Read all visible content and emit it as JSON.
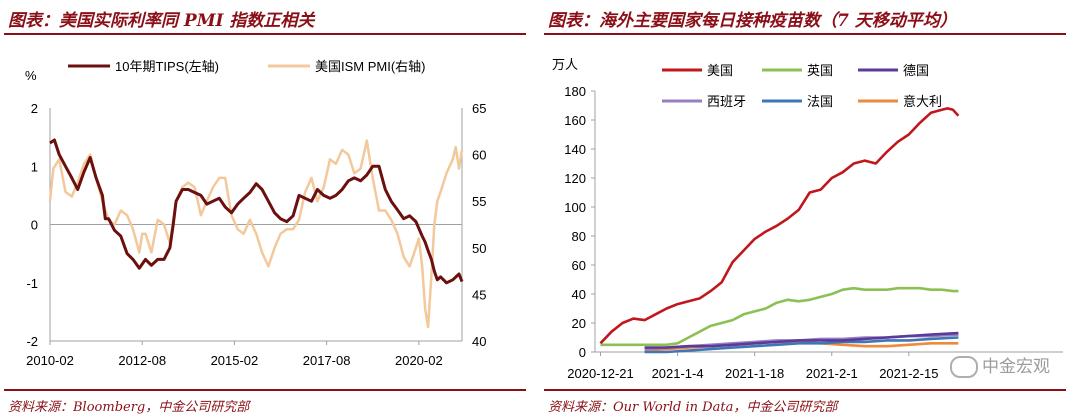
{
  "left_panel": {
    "title": "图表：美国实际利率同 PMI 指数正相关",
    "source": "资料来源：Bloomberg，中金公司研究部"
  },
  "right_panel": {
    "title": "图表：海外主要国家每日接种疫苗数（7 天移动平均）",
    "source": "资料来源：Our World in Data，中金公司研究部"
  },
  "watermark": "中金宏观",
  "chart_data": [
    {
      "type": "line",
      "title": "",
      "y_left_label": "%",
      "ylim_left": [
        -2,
        2
      ],
      "ylim_right": [
        40,
        65
      ],
      "yticks_left": [
        "-2",
        "-1",
        "0",
        "1",
        "2"
      ],
      "yticks_right": [
        "40",
        "45",
        "50",
        "55",
        "60",
        "65"
      ],
      "x_range": [
        2010.08,
        2021.25
      ],
      "xticks": [
        {
          "label": "2010-02",
          "x": 2010.08
        },
        {
          "label": "2012-08",
          "x": 2012.58
        },
        {
          "label": "2015-02",
          "x": 2015.08
        },
        {
          "label": "2017-08",
          "x": 2017.58
        },
        {
          "label": "2020-02",
          "x": 2020.08
        }
      ],
      "series": [
        {
          "name": "10年期TIPS(左轴)",
          "axis": "left",
          "color": "#6b0f0f",
          "x": [
            2010.08,
            2010.2,
            2010.33,
            2010.5,
            2010.67,
            2010.83,
            2011.0,
            2011.17,
            2011.33,
            2011.5,
            2011.58,
            2011.67,
            2011.83,
            2012.0,
            2012.17,
            2012.33,
            2012.5,
            2012.67,
            2012.83,
            2013.0,
            2013.17,
            2013.33,
            2013.42,
            2013.5,
            2013.67,
            2013.83,
            2014.0,
            2014.17,
            2014.33,
            2014.5,
            2014.67,
            2014.83,
            2015.0,
            2015.17,
            2015.33,
            2015.5,
            2015.67,
            2015.83,
            2016.0,
            2016.17,
            2016.33,
            2016.5,
            2016.67,
            2016.83,
            2017.0,
            2017.17,
            2017.33,
            2017.5,
            2017.67,
            2017.83,
            2018.0,
            2018.17,
            2018.33,
            2018.5,
            2018.67,
            2018.83,
            2019.0,
            2019.17,
            2019.33,
            2019.5,
            2019.67,
            2019.83,
            2020.0,
            2020.17,
            2020.25,
            2020.33,
            2020.42,
            2020.5,
            2020.58,
            2020.67,
            2020.83,
            2021.0,
            2021.17,
            2021.25
          ],
          "y": [
            1.4,
            1.45,
            1.2,
            1.0,
            0.8,
            0.6,
            0.9,
            1.15,
            0.8,
            0.5,
            0.1,
            0.1,
            -0.1,
            -0.2,
            -0.5,
            -0.6,
            -0.75,
            -0.6,
            -0.7,
            -0.6,
            -0.6,
            -0.4,
            0.0,
            0.4,
            0.6,
            0.6,
            0.55,
            0.5,
            0.35,
            0.4,
            0.45,
            0.3,
            0.2,
            0.35,
            0.45,
            0.55,
            0.7,
            0.6,
            0.4,
            0.2,
            0.1,
            0.05,
            0.15,
            0.5,
            0.45,
            0.4,
            0.6,
            0.5,
            0.45,
            0.5,
            0.6,
            0.75,
            0.8,
            0.75,
            0.85,
            1.0,
            1.0,
            0.6,
            0.4,
            0.25,
            0.1,
            0.15,
            0.05,
            -0.2,
            -0.3,
            -0.45,
            -0.6,
            -0.8,
            -0.95,
            -0.9,
            -1.0,
            -0.95,
            -0.85,
            -0.98
          ]
        },
        {
          "name": "美国ISM PMI(右轴)",
          "axis": "right",
          "color": "#f3c89b",
          "x": [
            2010.08,
            2010.17,
            2010.33,
            2010.5,
            2010.67,
            2010.83,
            2011.0,
            2011.17,
            2011.33,
            2011.5,
            2011.67,
            2011.83,
            2012.0,
            2012.17,
            2012.33,
            2012.5,
            2012.58,
            2012.67,
            2012.83,
            2013.0,
            2013.17,
            2013.33,
            2013.5,
            2013.67,
            2013.83,
            2014.0,
            2014.17,
            2014.33,
            2014.5,
            2014.67,
            2014.83,
            2015.0,
            2015.17,
            2015.33,
            2015.5,
            2015.67,
            2015.83,
            2016.0,
            2016.17,
            2016.33,
            2016.5,
            2016.67,
            2016.83,
            2017.0,
            2017.17,
            2017.33,
            2017.5,
            2017.67,
            2017.83,
            2018.0,
            2018.17,
            2018.33,
            2018.5,
            2018.67,
            2018.83,
            2019.0,
            2019.17,
            2019.33,
            2019.5,
            2019.67,
            2019.83,
            2020.0,
            2020.08,
            2020.17,
            2020.25,
            2020.33,
            2020.42,
            2020.5,
            2020.58,
            2020.67,
            2020.83,
            2021.0,
            2021.08,
            2021.17,
            2021.25
          ],
          "y": [
            55.0,
            58.5,
            59.5,
            56.0,
            55.5,
            57.0,
            59.0,
            60.0,
            57.5,
            55.0,
            53.0,
            52.5,
            54.0,
            53.5,
            52.0,
            49.5,
            51.5,
            51.5,
            49.5,
            53.0,
            52.5,
            50.5,
            55.0,
            56.5,
            57.0,
            56.5,
            53.5,
            55.0,
            56.5,
            57.5,
            57.5,
            53.5,
            52.0,
            51.5,
            53.0,
            51.5,
            49.5,
            48.0,
            50.0,
            51.5,
            52.0,
            52.0,
            53.0,
            56.0,
            57.5,
            55.0,
            56.5,
            59.5,
            59.0,
            60.5,
            60.0,
            58.0,
            58.5,
            61.5,
            57.5,
            54.0,
            54.0,
            53.0,
            51.5,
            49.0,
            48.0,
            50.0,
            51.0,
            48.0,
            43.5,
            41.5,
            47.0,
            52.5,
            55.0,
            56.0,
            58.0,
            59.5,
            60.8,
            58.5,
            60.5
          ]
        }
      ]
    },
    {
      "type": "line",
      "title": "",
      "ylabel": "万人",
      "ylim": [
        0,
        180
      ],
      "yticks": [
        "0",
        "20",
        "40",
        "60",
        "80",
        "100",
        "120",
        "140",
        "160",
        "180"
      ],
      "x_range": [
        -1,
        84
      ],
      "xticks": [
        {
          "label": "2020-12-21",
          "x": 0
        },
        {
          "label": "2021-1-4",
          "x": 14
        },
        {
          "label": "2021-1-18",
          "x": 28
        },
        {
          "label": "2021-2-1",
          "x": 42
        },
        {
          "label": "2021-2-15",
          "x": 56
        }
      ],
      "series": [
        {
          "name": "美国",
          "color": "#c0171d",
          "x": [
            0,
            2,
            3,
            4,
            6,
            8,
            10,
            12,
            14,
            16,
            18,
            20,
            22,
            24,
            26,
            28,
            30,
            32,
            34,
            36,
            38,
            40,
            42,
            44,
            46,
            48,
            50,
            52,
            54,
            56,
            58,
            60,
            62,
            63,
            64,
            65
          ],
          "y": [
            6,
            14,
            17,
            20,
            23,
            22,
            26,
            30,
            33,
            35,
            37,
            42,
            48,
            62,
            70,
            78,
            83,
            87,
            92,
            98,
            110,
            112,
            120,
            124,
            130,
            132,
            130,
            138,
            145,
            150,
            158,
            165,
            167,
            168,
            167,
            163
          ]
        },
        {
          "name": "英国",
          "color": "#8cc055",
          "x": [
            0,
            10,
            12,
            14,
            16,
            18,
            20,
            22,
            24,
            26,
            28,
            30,
            32,
            34,
            36,
            38,
            40,
            42,
            44,
            46,
            48,
            50,
            52,
            54,
            56,
            58,
            60,
            62,
            64,
            65
          ],
          "y": [
            5,
            5,
            5,
            6,
            10,
            14,
            18,
            20,
            22,
            26,
            28,
            30,
            34,
            36,
            35,
            36,
            38,
            40,
            43,
            44,
            43,
            43,
            43,
            44,
            44,
            44,
            43,
            43,
            42,
            42
          ]
        },
        {
          "name": "德国",
          "color": "#5a3b9c",
          "x": [
            8,
            12,
            16,
            20,
            24,
            28,
            32,
            36,
            40,
            44,
            48,
            52,
            56,
            60,
            65
          ],
          "y": [
            3,
            3,
            4,
            4,
            5,
            6,
            7,
            8,
            8,
            8,
            9,
            10,
            11,
            12,
            13
          ]
        },
        {
          "name": "西班牙",
          "color": "#9a7ec2",
          "x": [
            8,
            12,
            16,
            20,
            24,
            28,
            32,
            36,
            40,
            44,
            48,
            52,
            56,
            60,
            65
          ],
          "y": [
            2,
            3,
            4,
            5,
            6,
            7,
            8,
            8,
            9,
            9,
            10,
            10,
            11,
            11,
            12
          ]
        },
        {
          "name": "法国",
          "color": "#3f77b6",
          "x": [
            8,
            12,
            16,
            20,
            24,
            28,
            32,
            36,
            40,
            44,
            48,
            52,
            56,
            60,
            65
          ],
          "y": [
            0,
            0,
            1,
            2,
            3,
            4,
            5,
            6,
            6,
            7,
            7,
            8,
            8,
            9,
            10
          ]
        },
        {
          "name": "意大利",
          "color": "#ee8a3a",
          "x": [
            8,
            12,
            16,
            20,
            24,
            28,
            32,
            36,
            40,
            44,
            48,
            52,
            56,
            60,
            65
          ],
          "y": [
            1,
            2,
            3,
            4,
            5,
            6,
            7,
            7,
            6,
            5,
            4,
            4,
            5,
            6,
            6
          ]
        }
      ]
    }
  ]
}
